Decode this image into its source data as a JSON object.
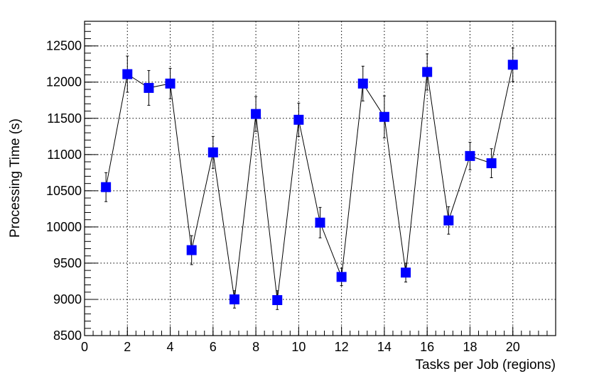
{
  "chart_data": {
    "type": "scatter",
    "xlabel": "Tasks per Job (regions)",
    "ylabel": "Processing Time (s)",
    "xlim": [
      0,
      22
    ],
    "ylim": [
      8500,
      12840
    ],
    "x_ticks": [
      0,
      2,
      4,
      6,
      8,
      10,
      12,
      14,
      16,
      18,
      20
    ],
    "y_ticks": [
      8500,
      9000,
      9500,
      10000,
      10500,
      11000,
      11500,
      12000,
      12500
    ],
    "grid": true,
    "marker_color": "#0000ff",
    "line_color": "#000000",
    "series": [
      {
        "x": [
          1,
          2,
          3,
          4,
          5,
          6,
          7,
          8,
          9,
          10,
          11,
          12,
          13,
          14,
          15,
          16,
          17,
          18,
          19,
          20
        ],
        "y": [
          10550,
          12110,
          11920,
          11980,
          9680,
          11030,
          9000,
          11560,
          8990,
          11480,
          10060,
          9310,
          11980,
          11520,
          9370,
          12140,
          10090,
          10980,
          10880,
          12240
        ],
        "yerr": [
          200,
          250,
          240,
          210,
          200,
          220,
          120,
          240,
          130,
          230,
          210,
          120,
          240,
          290,
          130,
          250,
          190,
          190,
          200,
          230
        ]
      }
    ]
  }
}
